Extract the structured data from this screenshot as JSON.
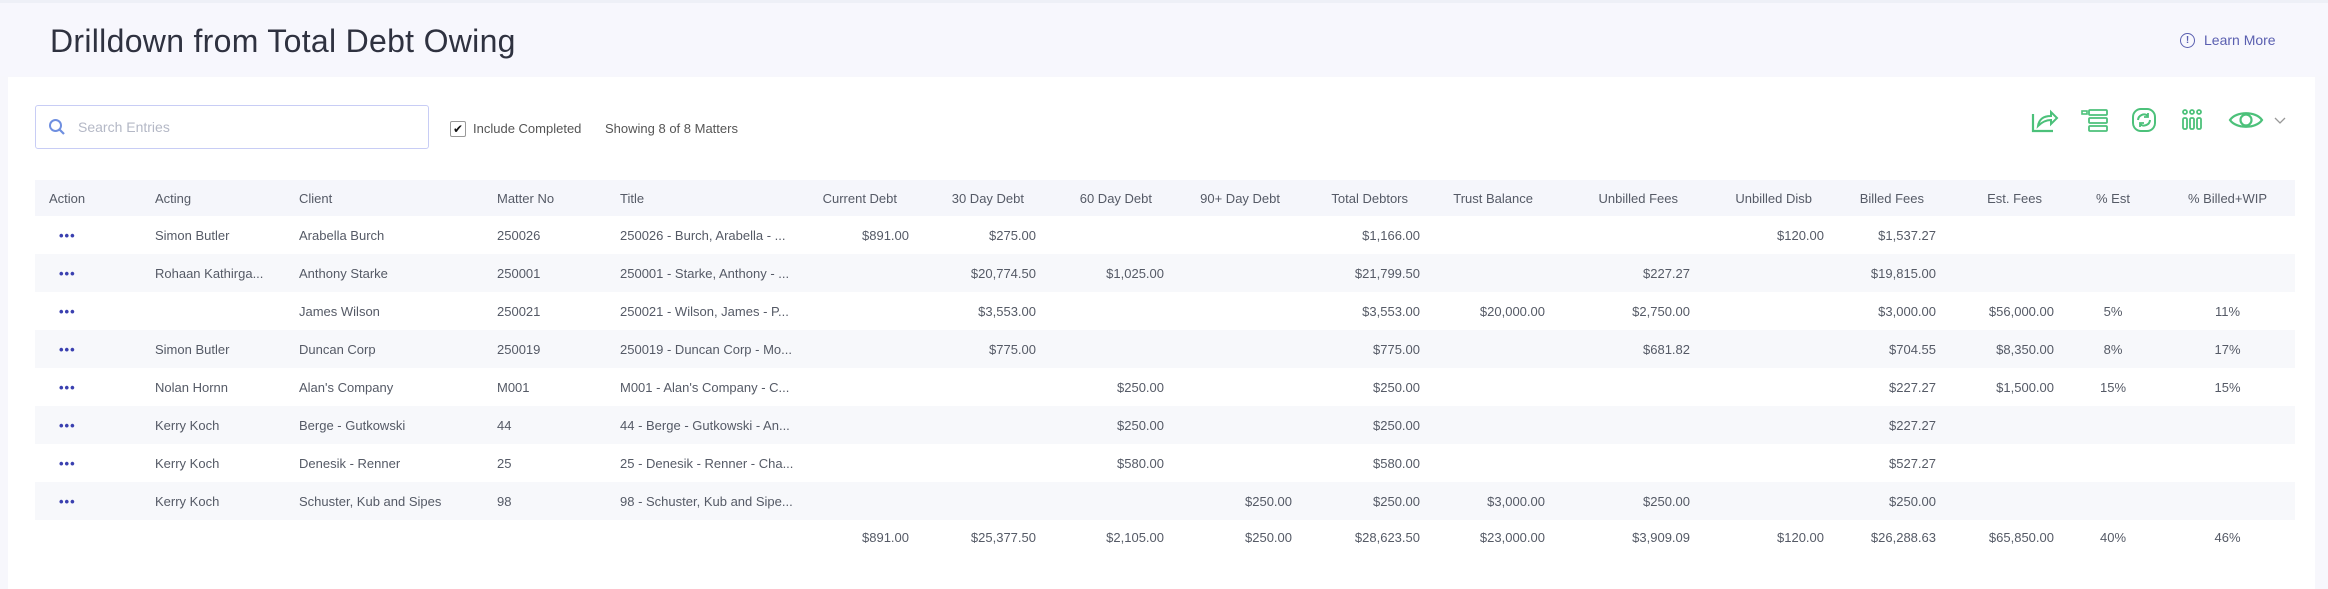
{
  "header": {
    "title": "Drilldown from Total Debt Owing",
    "learn_more": "Learn More"
  },
  "toolbar": {
    "search_placeholder": "Search Entries",
    "search_value": "",
    "include_completed_label": "Include Completed",
    "include_completed_checked": true,
    "showing": "Showing 8 of 8 Matters",
    "icons": [
      "share-export-icon",
      "column-settings-icon",
      "refresh-icon",
      "grid-icon",
      "eye-icon",
      "chevron-down-icon"
    ],
    "icon_color": "#4cc17a"
  },
  "table": {
    "columns": [
      "Action",
      "Acting",
      "Client",
      "Matter No",
      "Title",
      "Current Debt",
      "30 Day Debt",
      "60 Day Debt",
      "90+ Day Debt",
      "Total Debtors",
      "Trust Balance",
      "Unbilled Fees",
      "Unbilled Disb",
      "Billed Fees",
      "Est. Fees",
      "% Est",
      "% Billed+WIP"
    ],
    "action_label": "•••",
    "rows": [
      [
        "Simon Butler",
        "Arabella Burch",
        "250026",
        "250026 - Burch, Arabella - ...",
        "$891.00",
        "$275.00",
        "",
        "",
        "$1,166.00",
        "",
        "",
        "$120.00",
        "$1,537.27",
        "",
        "",
        ""
      ],
      [
        "Rohaan Kathirga...",
        "Anthony Starke",
        "250001",
        "250001 - Starke, Anthony - ...",
        "",
        "$20,774.50",
        "$1,025.00",
        "",
        "$21,799.50",
        "",
        "$227.27",
        "",
        "$19,815.00",
        "",
        "",
        ""
      ],
      [
        "",
        "James Wilson",
        "250021",
        "250021 - Wilson, James - P...",
        "",
        "$3,553.00",
        "",
        "",
        "$3,553.00",
        "$20,000.00",
        "$2,750.00",
        "",
        "$3,000.00",
        "$56,000.00",
        "5%",
        "11%"
      ],
      [
        "Simon Butler",
        "Duncan Corp",
        "250019",
        "250019 - Duncan Corp - Mo...",
        "",
        "$775.00",
        "",
        "",
        "$775.00",
        "",
        "$681.82",
        "",
        "$704.55",
        "$8,350.00",
        "8%",
        "17%"
      ],
      [
        "Nolan Hornn",
        "Alan's Company",
        "M001",
        "M001 - Alan's Company - C...",
        "",
        "",
        "$250.00",
        "",
        "$250.00",
        "",
        "",
        "",
        "$227.27",
        "$1,500.00",
        "15%",
        "15%"
      ],
      [
        "Kerry Koch",
        "Berge - Gutkowski",
        "44",
        "44 - Berge - Gutkowski - An...",
        "",
        "",
        "$250.00",
        "",
        "$250.00",
        "",
        "",
        "",
        "$227.27",
        "",
        "",
        ""
      ],
      [
        "Kerry Koch",
        "Denesik - Renner",
        "25",
        "25 - Denesik - Renner - Cha...",
        "",
        "",
        "$580.00",
        "",
        "$580.00",
        "",
        "",
        "",
        "$527.27",
        "",
        "",
        ""
      ],
      [
        "Kerry Koch",
        "Schuster, Kub and Sipes",
        "98",
        "98 - Schuster, Kub and Sipe...",
        "",
        "",
        "",
        "$250.00",
        "$250.00",
        "$3,000.00",
        "$250.00",
        "",
        "$250.00",
        "",
        "",
        ""
      ]
    ],
    "totals": [
      "",
      "",
      "",
      "",
      "",
      "$891.00",
      "$25,377.50",
      "$2,105.00",
      "$250.00",
      "$28,623.50",
      "$23,000.00",
      "$3,909.09",
      "$120.00",
      "$26,288.63",
      "$65,850.00",
      "40%",
      "46%"
    ]
  }
}
